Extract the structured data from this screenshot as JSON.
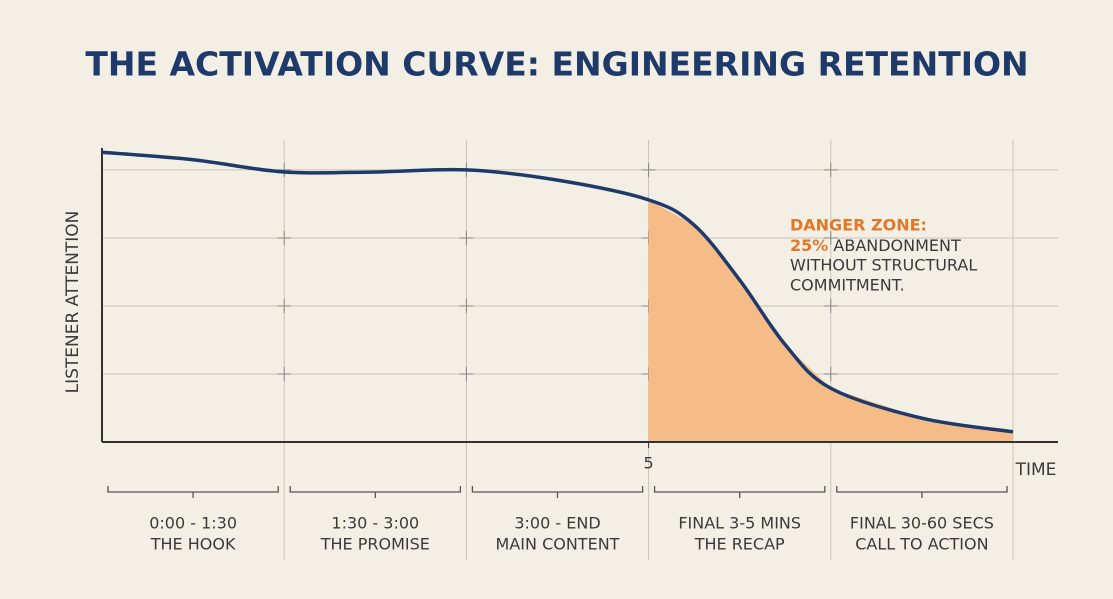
{
  "chart_data": {
    "type": "line",
    "title": "THE ACTIVATION CURVE: ENGINEERING RETENTION",
    "ylabel": "LISTENER ATTENTION",
    "xlabel": "TIME",
    "xlim": [
      0,
      5
    ],
    "ylim": [
      0,
      4.44
    ],
    "xticks": [
      {
        "value": 3,
        "label": "5"
      }
    ],
    "grid": true,
    "series": [
      {
        "color": "#1e3a6b",
        "x": [
          0,
          0.5,
          1,
          1.5,
          2,
          2.5,
          3,
          3.25,
          3.5,
          3.75,
          4,
          4.5,
          5
        ],
        "values": [
          4.26,
          4.15,
          3.97,
          3.97,
          4.0,
          3.85,
          3.56,
          3.19,
          2.38,
          1.43,
          0.79,
          0.35,
          0.15
        ]
      }
    ],
    "shaded_from": 3,
    "shade_color": "#f5bc88",
    "annotation": {
      "title": "DANGER ZONE:",
      "highlight": "25%",
      "lines": [
        "ABANDONMENT",
        "WITHOUT STRUCTURAL",
        "COMMITMENT."
      ],
      "color": "#e0782a"
    },
    "phases": [
      {
        "range": "0:00 - 1:30",
        "name": "THE HOOK"
      },
      {
        "range": "1:30 - 3:00",
        "name": "THE PROMISE"
      },
      {
        "range": "3:00 - END",
        "name": "MAIN CONTENT"
      },
      {
        "range": "FINAL 3-5 MINS",
        "name": "THE RECAP"
      },
      {
        "range": "FINAL 30-60 SECS",
        "name": "CALL TO ACTION"
      }
    ]
  }
}
